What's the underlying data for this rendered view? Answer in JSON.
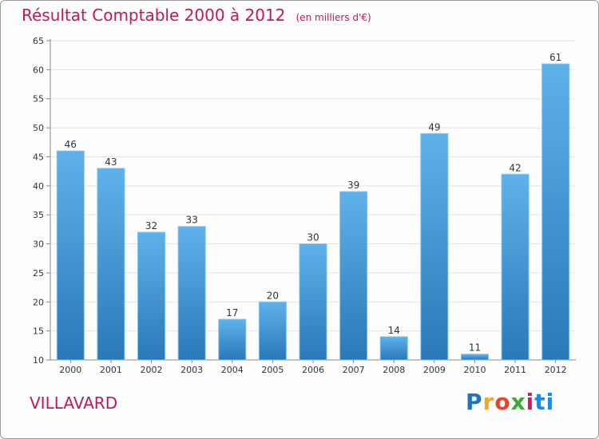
{
  "chart_data": {
    "type": "bar",
    "title": "Résultat Comptable 2000 à 2012",
    "subtitle": "(en milliers d'€)",
    "categories": [
      "2000",
      "2001",
      "2002",
      "2003",
      "2004",
      "2005",
      "2006",
      "2007",
      "2008",
      "2009",
      "2010",
      "2011",
      "2012"
    ],
    "values": [
      46,
      43,
      32,
      33,
      17,
      20,
      30,
      39,
      14,
      49,
      11,
      42,
      61
    ],
    "ylim": [
      10,
      65
    ],
    "yticks": [
      10,
      15,
      20,
      25,
      30,
      35,
      40,
      45,
      50,
      55,
      60,
      65
    ],
    "grid": true,
    "bar_color_top": "#5fb1ea",
    "bar_color_bottom": "#2a78b8",
    "title_color": "#c2185b"
  },
  "footer": {
    "commune": "VILLAVARD",
    "logo_parts": [
      "P",
      "r",
      "o",
      "x",
      "i",
      "ti"
    ]
  }
}
